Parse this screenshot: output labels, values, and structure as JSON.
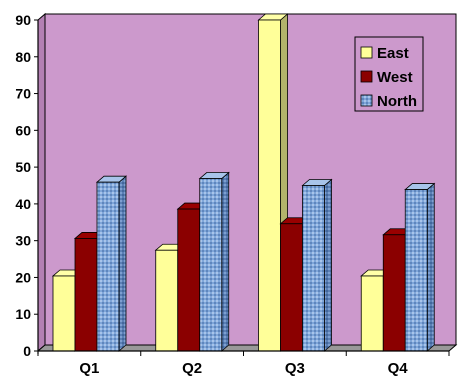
{
  "chart_data": {
    "type": "bar",
    "title": "",
    "xlabel": "",
    "ylabel": "",
    "categories": [
      "Q1",
      "Q2",
      "Q3",
      "Q4"
    ],
    "series": [
      {
        "name": "East",
        "values": [
          20.4,
          27.4,
          90,
          20.4
        ],
        "color": "#ffff99"
      },
      {
        "name": "West",
        "values": [
          30.6,
          38.6,
          34.6,
          31.6
        ],
        "color": "#8b0000"
      },
      {
        "name": "North",
        "values": [
          45.9,
          46.9,
          45,
          43.9
        ],
        "color": "#7fa6d9"
      }
    ],
    "ylim": [
      0,
      90
    ],
    "yticks": [
      0,
      10,
      20,
      30,
      40,
      50,
      60,
      70,
      80,
      90
    ],
    "grid": false,
    "legend_position": "top-right",
    "style": "3d-bar",
    "plot_background": "#cc99cc"
  }
}
